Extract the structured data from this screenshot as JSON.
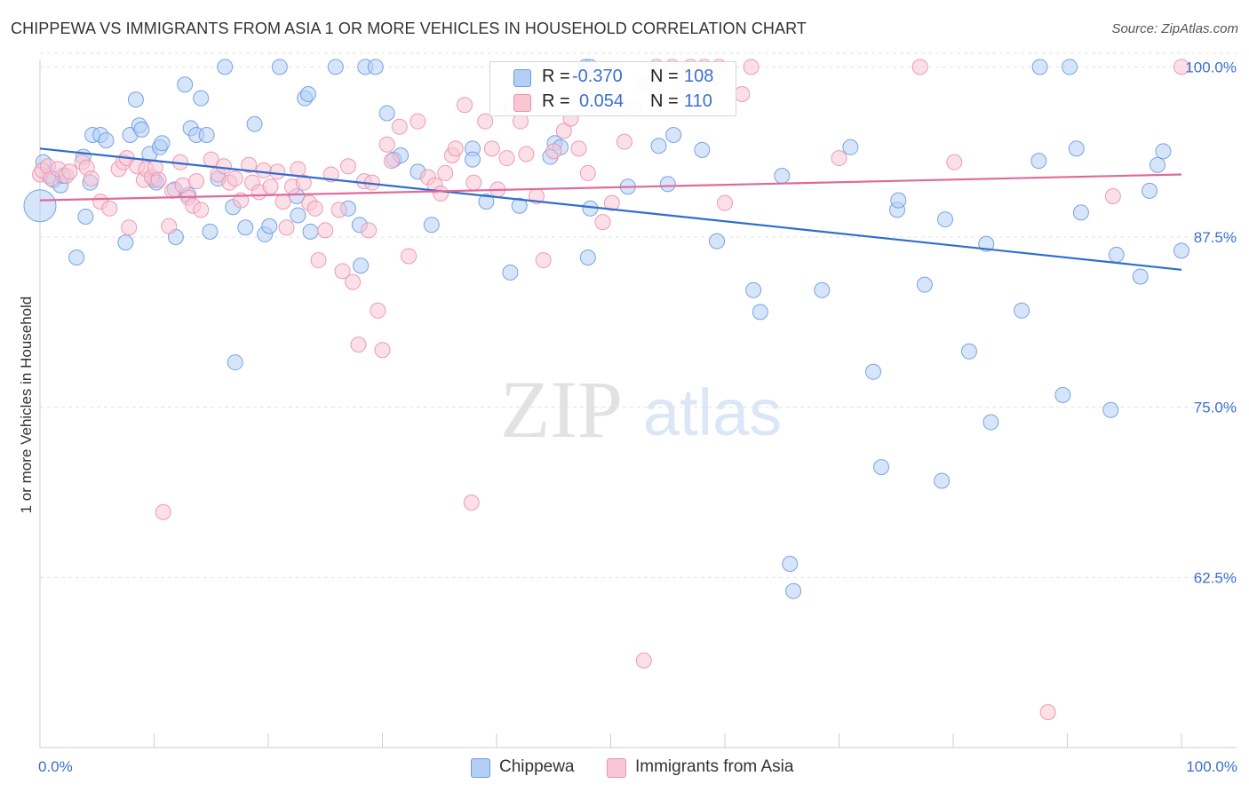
{
  "header": {
    "title": "CHIPPEWA VS IMMIGRANTS FROM ASIA 1 OR MORE VEHICLES IN HOUSEHOLD CORRELATION CHART",
    "source": "Source: ZipAtlas.com"
  },
  "watermark": {
    "zip": "ZIP",
    "atlas": "atlas"
  },
  "legend_top": {
    "rows": [
      {
        "r_label": "R =",
        "r_value": "-0.370",
        "n_label": "N =",
        "n_value": "108",
        "color": "#a9c8f5"
      },
      {
        "r_label": "R =",
        "r_value": "0.054",
        "n_label": "N =",
        "n_value": "110",
        "color": "#f7b8cc"
      }
    ]
  },
  "legend_bottom": {
    "items": [
      {
        "label": "Chippewa",
        "color": "#a9c8f5"
      },
      {
        "label": "Immigrants from Asia",
        "color": "#f7b8cc"
      }
    ]
  },
  "chart_data": {
    "type": "scatter",
    "title": "CHIPPEWA VS IMMIGRANTS FROM ASIA 1 OR MORE VEHICLES IN HOUSEHOLD CORRELATION CHART",
    "xlabel": "",
    "ylabel": "1 or more Vehicles in Household",
    "xlim": [
      0,
      100
    ],
    "ylim": [
      50,
      101
    ],
    "x_tick_labels": [
      "0.0%",
      "100.0%"
    ],
    "y_ticks": [
      62.5,
      75.0,
      87.5,
      100.0
    ],
    "y_tick_labels": [
      "62.5%",
      "75.0%",
      "87.5%",
      "100.0%"
    ],
    "grid": true,
    "colors": {
      "chippewa": "#6a9be0",
      "chippewa_fill": "#b4cff5",
      "asia": "#ec90ad",
      "asia_fill": "#f9c6d6",
      "chippewa_line": "#2f6dcf",
      "asia_line": "#e0699a",
      "tick_text": "#3a6fd0"
    },
    "series": [
      {
        "name": "Chippewa",
        "trend": {
          "x": [
            0,
            100
          ],
          "y": [
            94.0,
            85.1
          ]
        },
        "points": [
          [
            0.0,
            89.8
          ],
          [
            0.3,
            93.0
          ],
          [
            0.8,
            92.0
          ],
          [
            1.2,
            91.7
          ],
          [
            1.8,
            91.3
          ],
          [
            2.0,
            92.0
          ],
          [
            3.2,
            86.0
          ],
          [
            3.8,
            93.4
          ],
          [
            4.0,
            89.0
          ],
          [
            4.4,
            91.5
          ],
          [
            4.6,
            95.0
          ],
          [
            5.3,
            95.0
          ],
          [
            5.8,
            94.6
          ],
          [
            7.5,
            87.1
          ],
          [
            7.9,
            95.0
          ],
          [
            8.4,
            97.6
          ],
          [
            8.7,
            95.7
          ],
          [
            8.9,
            95.4
          ],
          [
            9.6,
            93.6
          ],
          [
            10.0,
            91.7
          ],
          [
            10.2,
            91.5
          ],
          [
            10.5,
            94.1
          ],
          [
            10.7,
            94.4
          ],
          [
            11.9,
            87.5
          ],
          [
            11.8,
            91.0
          ],
          [
            12.7,
            98.7
          ],
          [
            13.0,
            90.6
          ],
          [
            13.2,
            95.5
          ],
          [
            13.7,
            95.0
          ],
          [
            14.1,
            97.7
          ],
          [
            14.6,
            95.0
          ],
          [
            14.9,
            87.9
          ],
          [
            15.6,
            91.8
          ],
          [
            16.2,
            100.0
          ],
          [
            16.9,
            89.7
          ],
          [
            17.1,
            78.3
          ],
          [
            18.0,
            88.2
          ],
          [
            18.8,
            95.8
          ],
          [
            19.7,
            87.7
          ],
          [
            20.1,
            88.3
          ],
          [
            21.0,
            100.0
          ],
          [
            22.5,
            90.5
          ],
          [
            22.6,
            89.1
          ],
          [
            23.2,
            97.7
          ],
          [
            23.5,
            98.0
          ],
          [
            23.7,
            87.9
          ],
          [
            25.9,
            100.0
          ],
          [
            27.0,
            89.6
          ],
          [
            28.0,
            88.4
          ],
          [
            28.1,
            85.4
          ],
          [
            28.5,
            100.0
          ],
          [
            29.4,
            100.0
          ],
          [
            30.4,
            96.6
          ],
          [
            31.0,
            93.2
          ],
          [
            31.6,
            93.5
          ],
          [
            33.1,
            92.3
          ],
          [
            34.3,
            88.4
          ],
          [
            37.9,
            94.0
          ],
          [
            37.9,
            93.2
          ],
          [
            39.1,
            90.1
          ],
          [
            41.2,
            84.9
          ],
          [
            42.0,
            89.8
          ],
          [
            44.7,
            93.4
          ],
          [
            45.1,
            94.4
          ],
          [
            45.6,
            94.1
          ],
          [
            47.8,
            100.0
          ],
          [
            48.0,
            86.0
          ],
          [
            48.2,
            89.6
          ],
          [
            48.2,
            100.0
          ],
          [
            51.5,
            91.2
          ],
          [
            53.0,
            98.8
          ],
          [
            54.2,
            94.2
          ],
          [
            55.0,
            91.4
          ],
          [
            55.5,
            95.0
          ],
          [
            58.0,
            93.9
          ],
          [
            59.3,
            87.2
          ],
          [
            62.5,
            83.6
          ],
          [
            63.1,
            82.0
          ],
          [
            65.0,
            92.0
          ],
          [
            65.7,
            63.5
          ],
          [
            66.0,
            61.5
          ],
          [
            68.5,
            83.6
          ],
          [
            71.0,
            94.1
          ],
          [
            73.0,
            77.6
          ],
          [
            73.7,
            70.6
          ],
          [
            75.1,
            89.5
          ],
          [
            75.2,
            90.2
          ],
          [
            77.5,
            84.0
          ],
          [
            79.0,
            69.6
          ],
          [
            79.3,
            88.8
          ],
          [
            81.4,
            79.1
          ],
          [
            82.9,
            87.0
          ],
          [
            83.3,
            73.9
          ],
          [
            86.0,
            82.1
          ],
          [
            87.5,
            93.1
          ],
          [
            87.6,
            100.0
          ],
          [
            89.6,
            75.9
          ],
          [
            90.2,
            100.0
          ],
          [
            90.8,
            94.0
          ],
          [
            91.2,
            89.3
          ],
          [
            93.8,
            74.8
          ],
          [
            94.3,
            86.2
          ],
          [
            96.4,
            84.6
          ],
          [
            97.2,
            90.9
          ],
          [
            97.9,
            92.8
          ],
          [
            98.4,
            93.8
          ],
          [
            100.0,
            86.5
          ]
        ]
      },
      {
        "name": "Immigrants from Asia",
        "trend": {
          "x": [
            0,
            100
          ],
          "y": [
            90.2,
            92.1
          ]
        },
        "points": [
          [
            0.0,
            92.1
          ],
          [
            0.2,
            92.4
          ],
          [
            0.7,
            92.7
          ],
          [
            1.0,
            91.8
          ],
          [
            1.6,
            92.5
          ],
          [
            2.3,
            92.0
          ],
          [
            2.6,
            92.3
          ],
          [
            3.7,
            93.0
          ],
          [
            4.1,
            92.6
          ],
          [
            4.5,
            91.8
          ],
          [
            5.3,
            90.1
          ],
          [
            6.1,
            89.6
          ],
          [
            6.9,
            92.5
          ],
          [
            7.3,
            93.0
          ],
          [
            7.6,
            93.3
          ],
          [
            7.8,
            88.2
          ],
          [
            8.5,
            92.7
          ],
          [
            9.1,
            91.7
          ],
          [
            9.3,
            92.5
          ],
          [
            9.8,
            91.9
          ],
          [
            10.1,
            92.6
          ],
          [
            10.4,
            91.7
          ],
          [
            10.8,
            67.3
          ],
          [
            11.3,
            88.3
          ],
          [
            11.6,
            90.9
          ],
          [
            12.3,
            93.0
          ],
          [
            12.5,
            91.3
          ],
          [
            13.0,
            90.4
          ],
          [
            13.4,
            89.8
          ],
          [
            13.7,
            91.6
          ],
          [
            14.1,
            89.5
          ],
          [
            15.0,
            93.2
          ],
          [
            15.6,
            92.1
          ],
          [
            16.1,
            92.7
          ],
          [
            16.6,
            91.5
          ],
          [
            17.1,
            91.8
          ],
          [
            17.6,
            90.2
          ],
          [
            18.3,
            92.8
          ],
          [
            18.6,
            91.5
          ],
          [
            19.2,
            90.8
          ],
          [
            19.6,
            92.4
          ],
          [
            20.2,
            91.2
          ],
          [
            20.8,
            92.3
          ],
          [
            21.3,
            90.1
          ],
          [
            21.6,
            88.2
          ],
          [
            22.1,
            91.2
          ],
          [
            22.6,
            92.5
          ],
          [
            23.1,
            91.5
          ],
          [
            23.6,
            90.0
          ],
          [
            24.1,
            89.6
          ],
          [
            24.4,
            85.8
          ],
          [
            25.0,
            88.0
          ],
          [
            25.5,
            92.1
          ],
          [
            26.2,
            89.5
          ],
          [
            26.5,
            85.0
          ],
          [
            27.0,
            92.7
          ],
          [
            27.4,
            84.2
          ],
          [
            27.9,
            79.6
          ],
          [
            28.4,
            91.6
          ],
          [
            28.8,
            88.0
          ],
          [
            29.1,
            91.5
          ],
          [
            29.6,
            82.1
          ],
          [
            30.0,
            79.2
          ],
          [
            30.4,
            94.3
          ],
          [
            30.8,
            93.1
          ],
          [
            31.5,
            95.6
          ],
          [
            32.3,
            86.1
          ],
          [
            33.1,
            96.0
          ],
          [
            34.0,
            91.9
          ],
          [
            34.6,
            91.3
          ],
          [
            35.1,
            90.7
          ],
          [
            35.5,
            92.2
          ],
          [
            36.1,
            93.5
          ],
          [
            36.4,
            94.0
          ],
          [
            37.2,
            97.2
          ],
          [
            37.8,
            68.0
          ],
          [
            38.0,
            91.5
          ],
          [
            39.0,
            96.0
          ],
          [
            39.6,
            94.0
          ],
          [
            40.1,
            91.0
          ],
          [
            40.9,
            93.3
          ],
          [
            41.3,
            97.0
          ],
          [
            42.1,
            96.0
          ],
          [
            42.6,
            93.6
          ],
          [
            43.5,
            90.5
          ],
          [
            44.1,
            85.8
          ],
          [
            45.0,
            93.8
          ],
          [
            45.9,
            95.3
          ],
          [
            46.5,
            96.2
          ],
          [
            47.2,
            94.0
          ],
          [
            48.0,
            92.2
          ],
          [
            49.3,
            88.6
          ],
          [
            50.1,
            90.0
          ],
          [
            51.2,
            94.5
          ],
          [
            52.0,
            97.0
          ],
          [
            52.9,
            56.4
          ],
          [
            54.0,
            100.0
          ],
          [
            55.4,
            100.0
          ],
          [
            57.0,
            100.0
          ],
          [
            58.2,
            100.0
          ],
          [
            59.5,
            100.0
          ],
          [
            60.0,
            90.0
          ],
          [
            61.5,
            98.0
          ],
          [
            62.3,
            100.0
          ],
          [
            70.0,
            93.3
          ],
          [
            77.1,
            100.0
          ],
          [
            80.1,
            93.0
          ],
          [
            88.3,
            52.6
          ],
          [
            94.0,
            90.5
          ],
          [
            100.0,
            100.0
          ]
        ]
      }
    ]
  }
}
